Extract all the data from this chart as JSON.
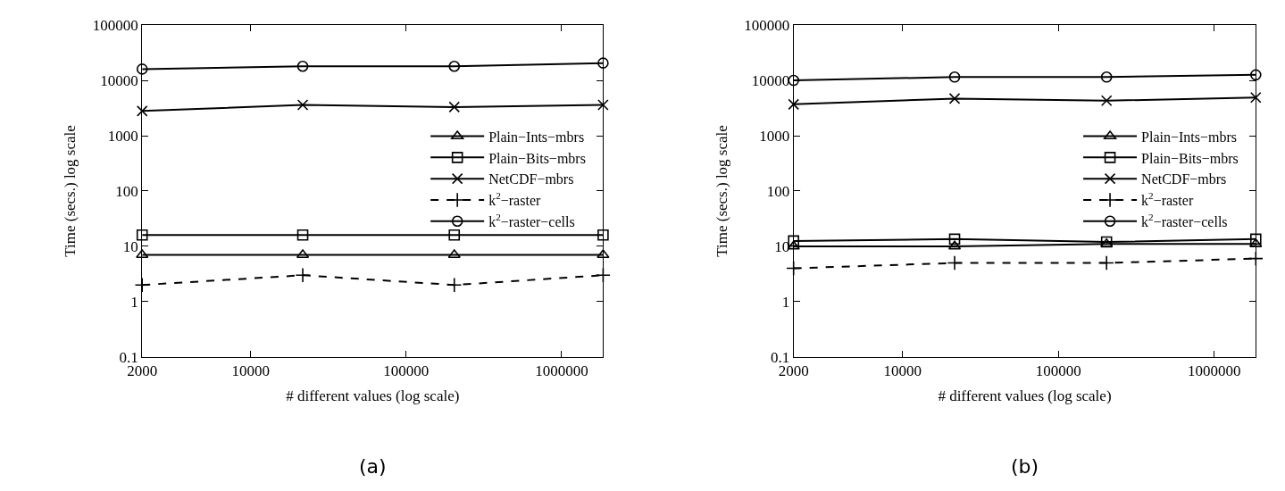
{
  "chart_data": [
    {
      "type": "line",
      "xlabel": "# different values (log scale)",
      "ylabel": "Time (secs.) log scale",
      "annotations": [
        "(a)"
      ],
      "log": "xy",
      "legend": "right",
      "x": [
        2000,
        21600,
        204000,
        1850000
      ],
      "xlim": [
        2000,
        1850000
      ],
      "xticks": [
        2000,
        10000,
        100000,
        1000000
      ],
      "ylim": [
        0.1,
        100000
      ],
      "yticks": [
        0.1,
        1,
        10,
        100,
        1000,
        10000,
        100000
      ],
      "series": [
        {
          "name": "Plain−Ints−mbrs",
          "color": "#000000",
          "marker": "triangle",
          "line_style": "solid",
          "values": [
            7,
            7,
            7,
            7
          ]
        },
        {
          "name": "Plain−Bits−mbrs",
          "color": "#000000",
          "marker": "square",
          "line_style": "solid",
          "values": [
            16,
            16,
            16,
            16
          ]
        },
        {
          "name": "NetCDF−mbrs",
          "color": "#000000",
          "marker": "cross",
          "line_style": "solid",
          "values": [
            2800,
            3600,
            3300,
            3600
          ]
        },
        {
          "name": "k$^{2}$−raster",
          "color": "#000000",
          "marker": "plus",
          "line_style": "dashed",
          "values": [
            2,
            3,
            2,
            3
          ]
        },
        {
          "name": "k$^{2}$−raster−cells",
          "color": "#000000",
          "marker": "circle",
          "line_style": "solid",
          "values": [
            16000,
            18000,
            18000,
            20600
          ]
        }
      ]
    },
    {
      "type": "line",
      "xlabel": "# different values (log scale)",
      "ylabel": "Time (secs.) log scale",
      "annotations": [
        "(b)"
      ],
      "log": "xy",
      "legend": "right",
      "x": [
        2000,
        21600,
        204000,
        1850000
      ],
      "xlim": [
        2000,
        1850000
      ],
      "xticks": [
        2000,
        10000,
        100000,
        1000000
      ],
      "ylim": [
        0.1,
        100000
      ],
      "yticks": [
        0.1,
        1,
        10,
        100,
        1000,
        10000,
        100000
      ],
      "series": [
        {
          "name": "Plain−Ints−mbrs",
          "color": "#000000",
          "marker": "triangle",
          "line_style": "solid",
          "values": [
            10,
            10,
            11,
            11
          ]
        },
        {
          "name": "Plain−Bits−mbrs",
          "color": "#000000",
          "marker": "square",
          "line_style": "solid",
          "values": [
            12.5,
            13.5,
            12,
            13.5
          ]
        },
        {
          "name": "NetCDF−mbrs",
          "color": "#000000",
          "marker": "cross",
          "line_style": "solid",
          "values": [
            3700,
            4700,
            4300,
            4900
          ]
        },
        {
          "name": "k$^{2}$−raster",
          "color": "#000000",
          "marker": "plus",
          "line_style": "dashed",
          "values": [
            4,
            5,
            5,
            6
          ]
        },
        {
          "name": "k$^{2}$−raster−cells",
          "color": "#000000",
          "marker": "circle",
          "line_style": "solid",
          "values": [
            10000,
            11500,
            11500,
            12600
          ]
        }
      ]
    }
  ]
}
